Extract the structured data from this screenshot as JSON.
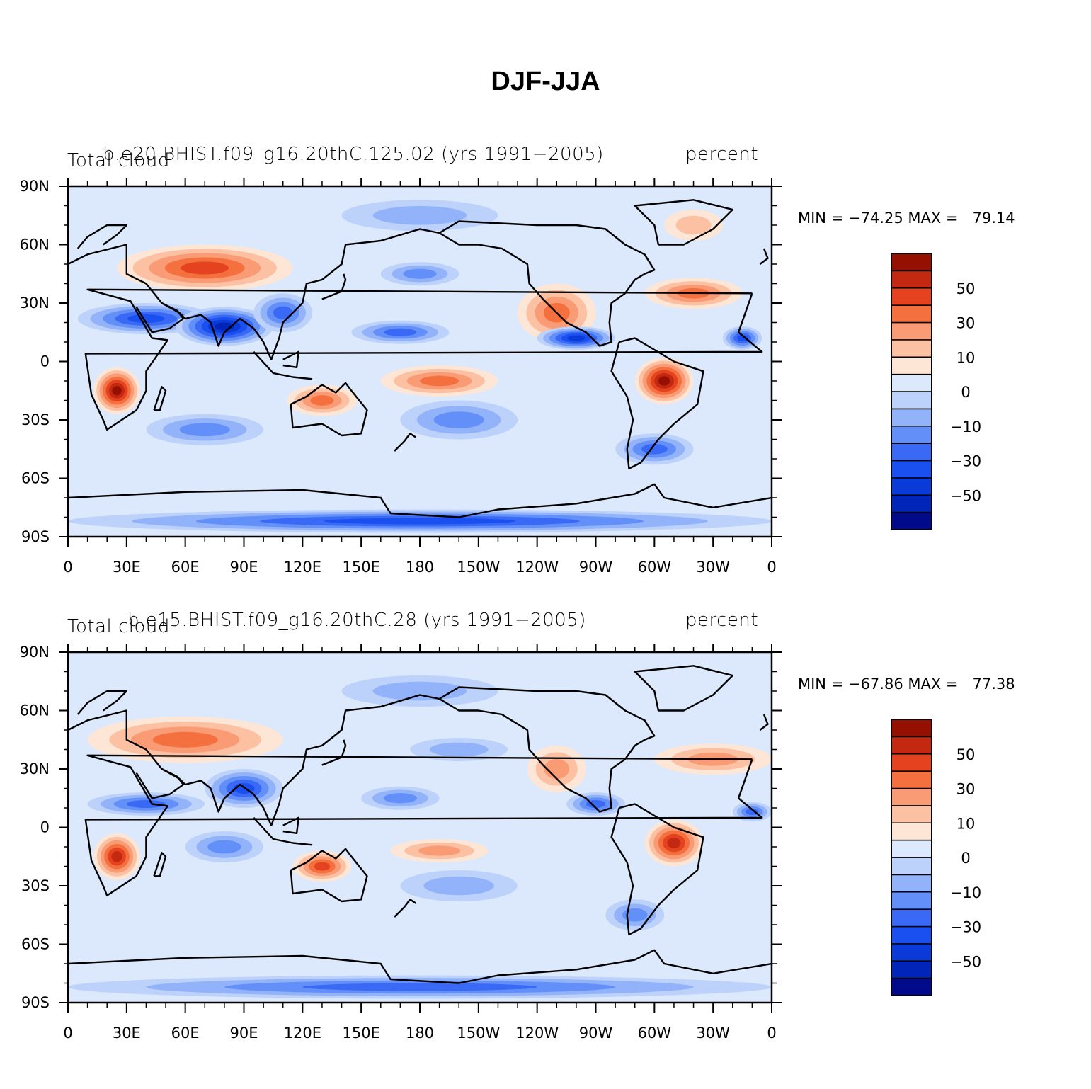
{
  "figure": {
    "title": "DJF-JJA"
  },
  "colors": {
    "levels": [
      "#000a8a",
      "#0025b8",
      "#0a3ad8",
      "#1a4ff0",
      "#3a6af5",
      "#6390f8",
      "#92b2f9",
      "#bcd2fb",
      "#dce9fc",
      "#fde6d6",
      "#fcc0a2",
      "#f99b75",
      "#f4703f",
      "#e5421f",
      "#c32810",
      "#951000"
    ],
    "coast": "#000000"
  },
  "axes": {
    "lat_labels": [
      "90N",
      "60N",
      "30N",
      "0",
      "30S",
      "60S",
      "90S"
    ],
    "lon_labels": [
      "0",
      "30E",
      "60E",
      "90E",
      "120E",
      "150E",
      "180",
      "150W",
      "120W",
      "90W",
      "60W",
      "30W",
      "0"
    ]
  },
  "colorbar": {
    "labels": [
      "50",
      "30",
      "10",
      "0",
      "−10",
      "−30",
      "−50"
    ]
  },
  "panels": [
    {
      "case_title": "b.e20.BHIST.f09_g16.20thC.125.02 (yrs 1991−2005)",
      "left_label": "Total cloud",
      "right_label": "percent",
      "stats": "MIN = −74.25 MAX =   79.14"
    },
    {
      "case_title": "b.e15.BHIST.f09_g16.20thC.28 (yrs 1991−2005)",
      "left_label": "Total cloud",
      "right_label": "percent",
      "stats": "MIN = −67.86 MAX =   77.38"
    }
  ]
}
